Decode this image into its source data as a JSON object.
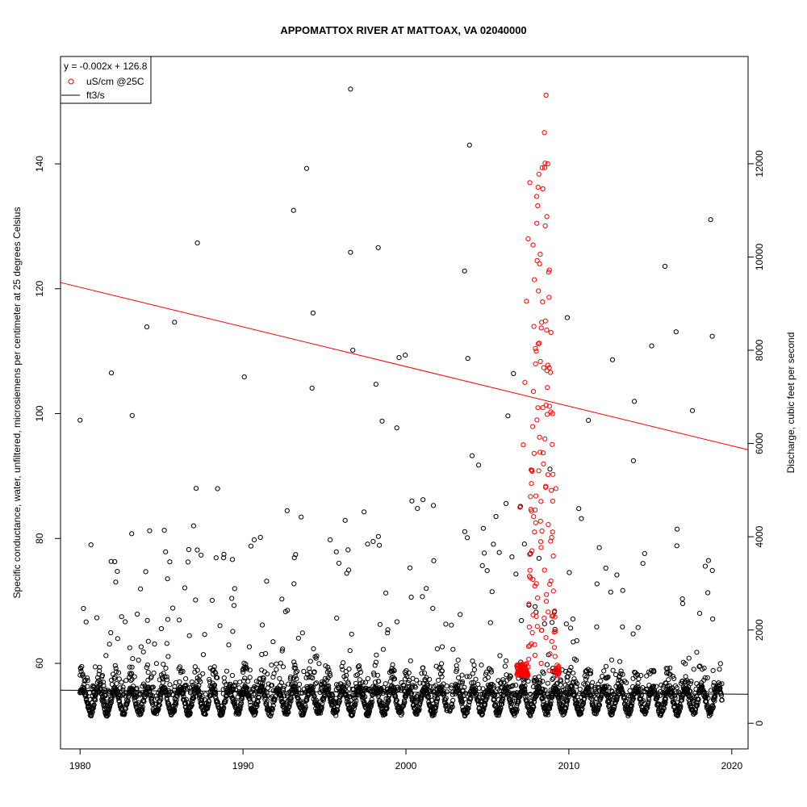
{
  "chart_data": {
    "type": "scatter",
    "title": "APPOMATTOX RIVER AT MATTOAX, VA 02040000",
    "ylabel": "Specific conductance, water, unfiltered, microsiemens per centimeter at 25 degrees Celsius",
    "y2label": "Discharge, cubic feet per second",
    "xlim": [
      1978.8,
      2021.0
    ],
    "ylim": [
      46.3,
      157.2
    ],
    "y2lim": [
      -550,
      14300
    ],
    "x_ticks": [
      "1980",
      "1990",
      "2000",
      "2010",
      "2020"
    ],
    "y_ticks": [
      "60",
      "80",
      "100",
      "120",
      "140"
    ],
    "y2_ticks": [
      "0",
      "2000",
      "4000",
      "6000",
      "8000",
      "10000",
      "12000"
    ],
    "grid": false,
    "legend_position": "top-left",
    "legend": {
      "equation": "y = -0.002x + 126.8",
      "entries": [
        {
          "label": "uS/cm @25C",
          "marker": "circle",
          "color": "#ff0000"
        },
        {
          "label": "ft3/s",
          "marker": "line",
          "color": "#000000"
        }
      ]
    },
    "regression": {
      "color": "#ff0000",
      "points": [
        {
          "x": 1978.8,
          "y": 121.0
        },
        {
          "x": 2021.0,
          "y": 94.2
        }
      ]
    },
    "discharge_line": {
      "color": "#000000",
      "points": [
        {
          "x": 1978.8,
          "y": 709
        },
        {
          "x": 2021.0,
          "y": 622
        }
      ]
    },
    "series": [
      {
        "name": "uS/cm @25C",
        "color": "#ff0000",
        "axis": "left",
        "x_range": [
          2006.8,
          2009.4
        ],
        "points": [
          {
            "x": 2007.0,
            "y": 85.0
          },
          {
            "x": 2007.2,
            "y": 95.0
          },
          {
            "x": 2007.3,
            "y": 105.0
          },
          {
            "x": 2007.4,
            "y": 118.0
          },
          {
            "x": 2007.5,
            "y": 128.0
          },
          {
            "x": 2007.6,
            "y": 137.0
          },
          {
            "x": 2007.8,
            "y": 127.0
          },
          {
            "x": 2008.0,
            "y": 110.0
          },
          {
            "x": 2008.2,
            "y": 124.0
          },
          {
            "x": 2008.4,
            "y": 136.0
          },
          {
            "x": 2008.5,
            "y": 145.0
          },
          {
            "x": 2008.6,
            "y": 151.0
          },
          {
            "x": 2008.7,
            "y": 140.0
          },
          {
            "x": 2008.8,
            "y": 123.0
          },
          {
            "x": 2008.9,
            "y": 113.0
          },
          {
            "x": 2009.0,
            "y": 100.0
          },
          {
            "x": 2009.2,
            "y": 88.0
          },
          {
            "x": 2007.9,
            "y": 63.0
          },
          {
            "x": 2008.3,
            "y": 60.0
          },
          {
            "x": 2009.1,
            "y": 65.0
          }
        ]
      },
      {
        "name": "Discharge (ft3/s)",
        "color": "#000000",
        "axis": "right",
        "x_range": [
          1980.0,
          2019.4
        ],
        "points": [
          {
            "x": 1980.0,
            "y": 6500
          },
          {
            "x": 1983.2,
            "y": 6600
          },
          {
            "x": 1984.1,
            "y": 8500
          },
          {
            "x": 1985.8,
            "y": 8600
          },
          {
            "x": 1987.2,
            "y": 10300
          },
          {
            "x": 1993.1,
            "y": 11000
          },
          {
            "x": 1993.9,
            "y": 11900
          },
          {
            "x": 1994.3,
            "y": 8800
          },
          {
            "x": 1996.6,
            "y": 13600
          },
          {
            "x": 1996.6,
            "y": 10100
          },
          {
            "x": 1998.3,
            "y": 10200
          },
          {
            "x": 2003.6,
            "y": 9700
          },
          {
            "x": 2003.9,
            "y": 12400
          },
          {
            "x": 2006.6,
            "y": 7500
          },
          {
            "x": 2009.9,
            "y": 8700
          },
          {
            "x": 2015.9,
            "y": 9800
          },
          {
            "x": 2018.7,
            "y": 10800
          },
          {
            "x": 2018.8,
            "y": 8300
          }
        ]
      }
    ]
  }
}
